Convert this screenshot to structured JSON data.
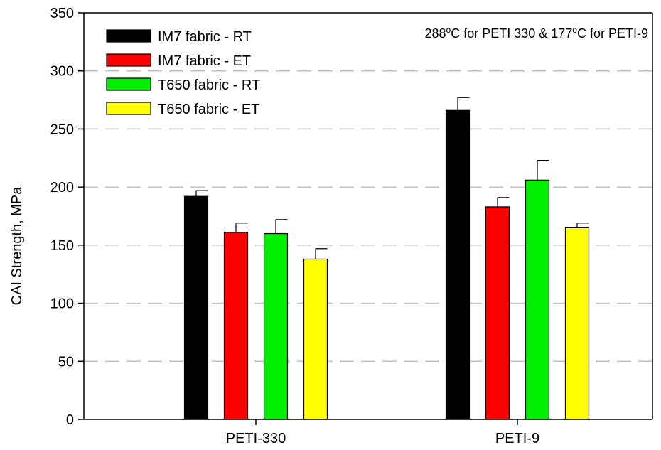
{
  "chart_data": {
    "type": "bar",
    "title": "",
    "xlabel": "",
    "ylabel": "CAI Strength, MPa",
    "ylim": [
      0,
      350
    ],
    "yticks": [
      0,
      50,
      100,
      150,
      200,
      250,
      300,
      350
    ],
    "grid": "horizontal-dashed",
    "legend_position": "top-left",
    "categories": [
      "PETI-330",
      "PETI-9"
    ],
    "annotation": {
      "text_parts": [
        "288",
        "o",
        "C for PETI 330 & 177",
        "o",
        "C for PETI-9"
      ]
    },
    "series": [
      {
        "name": "IM7 fabric - RT",
        "color": "#000000",
        "values": [
          192,
          266
        ],
        "errors": [
          5,
          11
        ]
      },
      {
        "name": "IM7 fabric - ET",
        "color": "#ff0000",
        "values": [
          161,
          183
        ],
        "errors": [
          8,
          8
        ]
      },
      {
        "name": "T650 fabric - RT",
        "color": "#00ee00",
        "values": [
          160,
          206
        ],
        "errors": [
          12,
          17
        ]
      },
      {
        "name": "T650 fabric - ET",
        "color": "#ffff00",
        "values": [
          138,
          165
        ],
        "errors": [
          9,
          4
        ]
      }
    ]
  }
}
